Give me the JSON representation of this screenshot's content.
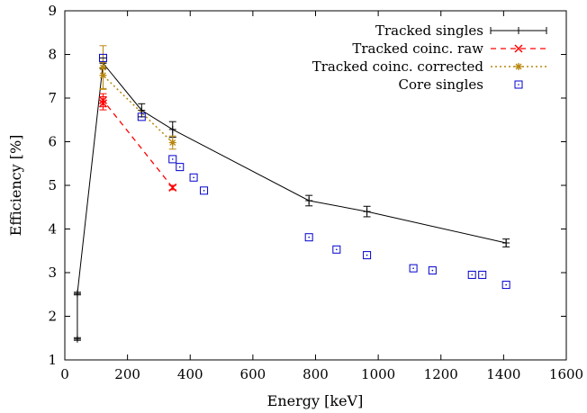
{
  "chart_data": {
    "type": "scatter",
    "xlabel": "Energy [keV]",
    "ylabel": "Efficiency [%]",
    "xlim": [
      0,
      1600
    ],
    "ylim": [
      1,
      9
    ],
    "xticks": [
      0,
      200,
      400,
      600,
      800,
      1000,
      1200,
      1400,
      1600
    ],
    "yticks": [
      1,
      2,
      3,
      4,
      5,
      6,
      7,
      8,
      9
    ],
    "grid": false,
    "legend_position": "top-right",
    "series": [
      {
        "name": "Tracked singles",
        "style": "line-errorbar",
        "color": "#000000",
        "x": [
          40,
          40,
          122,
          245,
          344,
          779,
          964,
          1408
        ],
        "y": [
          1.48,
          2.52,
          7.8,
          6.72,
          6.28,
          4.65,
          4.4,
          3.68
        ],
        "err": [
          0.03,
          0.03,
          0.12,
          0.15,
          0.18,
          0.12,
          0.12,
          0.09
        ]
      },
      {
        "name": "Tracked coinc. raw",
        "style": "dashed-x",
        "color": "#ff0000",
        "x": [
          122,
          122,
          344
        ],
        "y": [
          6.88,
          6.95,
          4.95
        ],
        "err": [
          0.15,
          0.15,
          0.05
        ]
      },
      {
        "name": "Tracked coinc. corrected",
        "style": "dotted-star",
        "color": "#b8860b",
        "x": [
          122,
          122,
          344
        ],
        "y": [
          7.7,
          7.52,
          5.98
        ],
        "err": [
          0.5,
          0.3,
          0.15
        ]
      },
      {
        "name": "Core singles",
        "style": "square-dot",
        "color": "#0000cc",
        "x": [
          122,
          245,
          344,
          367,
          411,
          444,
          779,
          867,
          964,
          1112,
          1173,
          1299,
          1332,
          1408
        ],
        "y": [
          7.92,
          6.57,
          5.6,
          5.42,
          5.18,
          4.88,
          3.81,
          3.53,
          3.4,
          3.1,
          3.05,
          2.95,
          2.95,
          2.72
        ]
      }
    ]
  }
}
